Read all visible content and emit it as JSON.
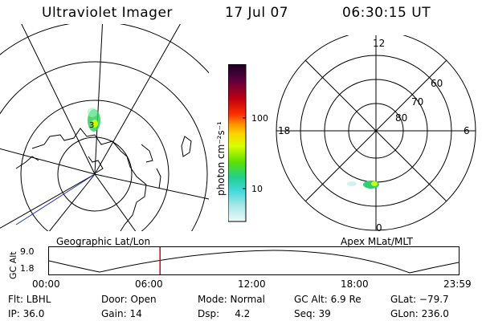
{
  "header": {
    "instrument": "Ultraviolet Imager",
    "date": "17 Jul 07",
    "time": "06:30:15 UT"
  },
  "colorbar": {
    "unit_label": "photon cm⁻²s⁻¹",
    "ticks": [
      "100",
      "10"
    ],
    "colors": [
      "#1a0020",
      "#3a0040",
      "#6a0030",
      "#a00010",
      "#d80000",
      "#ff4000",
      "#ff9000",
      "#ffd000",
      "#e8ff00",
      "#a8ff00",
      "#40e060",
      "#00d0a0",
      "#40d8d8",
      "#a0e8e8",
      "#e0f4f4"
    ]
  },
  "geo_map": {
    "label": "Geographic Lat/Lon",
    "spot_label": "3"
  },
  "polar_map": {
    "label": "Apex MLat/MLT",
    "mlt_labels": [
      "12",
      "18",
      "6",
      "0"
    ],
    "lat_labels": [
      "60",
      "70",
      "80"
    ]
  },
  "timeline": {
    "axis_label": "GC Alt",
    "y_ticks": [
      "9.0",
      "1.8"
    ],
    "x_ticks": [
      "00:00",
      "06:00",
      "12:00",
      "18:00",
      "23:59"
    ],
    "cursor_time_fraction": 0.271
  },
  "status": {
    "flt": "Flt: LBHL",
    "ip": "IP: 36.0",
    "door": "Door: Open",
    "gain": "Gain: 14",
    "mode": "Mode: Normal",
    "dsp": "Dsp:     4.2",
    "gc_alt": "GC Alt: 6.9 Re",
    "seq": "Seq: 39",
    "glat": "GLat: −79.7",
    "glon": "GLon: 236.0"
  }
}
